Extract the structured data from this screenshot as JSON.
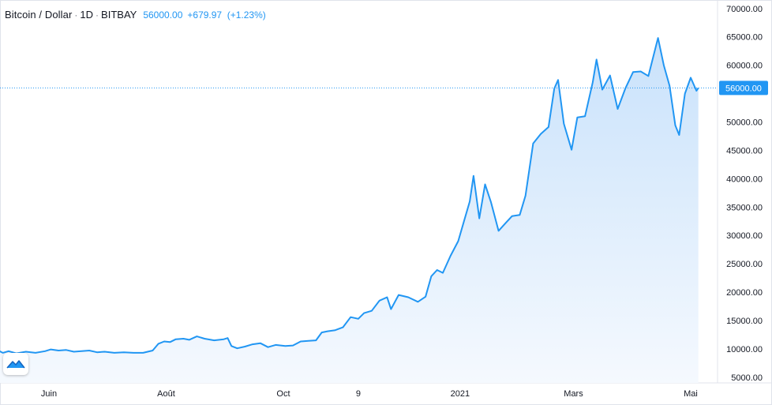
{
  "header": {
    "symbol": "Bitcoin / Dollar",
    "interval": "1D",
    "exchange": "BITBAY",
    "price": "56000.00",
    "change": "+679.97",
    "change_pct": "(+1.23%)"
  },
  "toolbar": {
    "logo_icon": "tradingview-logo-icon"
  },
  "colors": {
    "line": "#2196f3",
    "fill_top": "#c9e2fb",
    "fill_bottom": "#f5f9fe",
    "price_tag_bg": "#2196f3",
    "price_tag_text": "#ffffff",
    "axis_text": "#131722"
  },
  "chart_data": {
    "type": "area",
    "title": "",
    "xlabel": "",
    "ylabel": "",
    "ylim": [
      4000,
      71500
    ],
    "y_ticks": [
      "70000.00",
      "65000.00",
      "60000.00",
      "55000.00",
      "50000.00",
      "45000.00",
      "40000.00",
      "35000.00",
      "30000.00",
      "25000.00",
      "20000.00",
      "15000.00",
      "10000.00",
      "5000.00"
    ],
    "y_tick_values": [
      70000,
      65000,
      60000,
      55000,
      50000,
      45000,
      40000,
      35000,
      30000,
      25000,
      20000,
      15000,
      10000,
      5000
    ],
    "x_ticks": [
      "Juin",
      "Août",
      "Oct",
      "9",
      "2021",
      "Mars",
      "Mai"
    ],
    "x_tick_dates": [
      "2020-06-01",
      "2020-08-01",
      "2020-10-01",
      "2020-11-09",
      "2021-01-01",
      "2021-03-01",
      "2021-05-01"
    ],
    "last_price_label": "56000.00",
    "last_price": 56000,
    "grid": false,
    "series": [
      {
        "points": [
          [
            "2020-05-05",
            9800
          ],
          [
            "2020-05-08",
            9300
          ],
          [
            "2020-05-11",
            9600
          ],
          [
            "2020-05-15",
            9200
          ],
          [
            "2020-05-20",
            9500
          ],
          [
            "2020-05-25",
            9300
          ],
          [
            "2020-05-30",
            9600
          ],
          [
            "2020-06-02",
            9900
          ],
          [
            "2020-06-06",
            9700
          ],
          [
            "2020-06-10",
            9800
          ],
          [
            "2020-06-14",
            9500
          ],
          [
            "2020-06-18",
            9600
          ],
          [
            "2020-06-22",
            9700
          ],
          [
            "2020-06-26",
            9400
          ],
          [
            "2020-06-30",
            9500
          ],
          [
            "2020-07-05",
            9300
          ],
          [
            "2020-07-10",
            9400
          ],
          [
            "2020-07-15",
            9300
          ],
          [
            "2020-07-20",
            9300
          ],
          [
            "2020-07-25",
            9700
          ],
          [
            "2020-07-28",
            10900
          ],
          [
            "2020-07-31",
            11300
          ],
          [
            "2020-08-03",
            11200
          ],
          [
            "2020-08-06",
            11700
          ],
          [
            "2020-08-10",
            11800
          ],
          [
            "2020-08-13",
            11600
          ],
          [
            "2020-08-17",
            12200
          ],
          [
            "2020-08-21",
            11800
          ],
          [
            "2020-08-26",
            11500
          ],
          [
            "2020-08-31",
            11700
          ],
          [
            "2020-09-02",
            11900
          ],
          [
            "2020-09-04",
            10500
          ],
          [
            "2020-09-07",
            10100
          ],
          [
            "2020-09-11",
            10400
          ],
          [
            "2020-09-15",
            10800
          ],
          [
            "2020-09-19",
            11000
          ],
          [
            "2020-09-23",
            10300
          ],
          [
            "2020-09-27",
            10700
          ],
          [
            "2020-10-02",
            10500
          ],
          [
            "2020-10-06",
            10600
          ],
          [
            "2020-10-10",
            11300
          ],
          [
            "2020-10-14",
            11400
          ],
          [
            "2020-10-18",
            11500
          ],
          [
            "2020-10-21",
            12900
          ],
          [
            "2020-10-24",
            13100
          ],
          [
            "2020-10-28",
            13300
          ],
          [
            "2020-11-01",
            13800
          ],
          [
            "2020-11-05",
            15600
          ],
          [
            "2020-11-09",
            15300
          ],
          [
            "2020-11-12",
            16300
          ],
          [
            "2020-11-16",
            16700
          ],
          [
            "2020-11-20",
            18500
          ],
          [
            "2020-11-24",
            19100
          ],
          [
            "2020-11-26",
            17000
          ],
          [
            "2020-11-30",
            19500
          ],
          [
            "2020-12-05",
            19100
          ],
          [
            "2020-12-10",
            18300
          ],
          [
            "2020-12-14",
            19200
          ],
          [
            "2020-12-17",
            22800
          ],
          [
            "2020-12-20",
            23900
          ],
          [
            "2020-12-23",
            23400
          ],
          [
            "2020-12-27",
            26400
          ],
          [
            "2020-12-31",
            29000
          ],
          [
            "2021-01-03",
            32500
          ],
          [
            "2021-01-06",
            36000
          ],
          [
            "2021-01-08",
            40500
          ],
          [
            "2021-01-11",
            33000
          ],
          [
            "2021-01-14",
            39000
          ],
          [
            "2021-01-17",
            35900
          ],
          [
            "2021-01-21",
            30800
          ],
          [
            "2021-01-25",
            32300
          ],
          [
            "2021-01-28",
            33400
          ],
          [
            "2021-02-01",
            33600
          ],
          [
            "2021-02-04",
            37000
          ],
          [
            "2021-02-08",
            46200
          ],
          [
            "2021-02-12",
            47900
          ],
          [
            "2021-02-16",
            49100
          ],
          [
            "2021-02-19",
            55900
          ],
          [
            "2021-02-21",
            57400
          ],
          [
            "2021-02-24",
            49700
          ],
          [
            "2021-02-28",
            45100
          ],
          [
            "2021-03-03",
            50800
          ],
          [
            "2021-03-07",
            51000
          ],
          [
            "2021-03-11",
            57000
          ],
          [
            "2021-03-13",
            61000
          ],
          [
            "2021-03-16",
            55700
          ],
          [
            "2021-03-20",
            58200
          ],
          [
            "2021-03-24",
            52300
          ],
          [
            "2021-03-28",
            55900
          ],
          [
            "2021-04-01",
            58800
          ],
          [
            "2021-04-05",
            58900
          ],
          [
            "2021-04-09",
            58100
          ],
          [
            "2021-04-13",
            63500
          ],
          [
            "2021-04-14",
            64800
          ],
          [
            "2021-04-17",
            60000
          ],
          [
            "2021-04-20",
            56400
          ],
          [
            "2021-04-23",
            49400
          ],
          [
            "2021-04-25",
            47700
          ],
          [
            "2021-04-28",
            55000
          ],
          [
            "2021-05-01",
            57800
          ],
          [
            "2021-05-04",
            55500
          ],
          [
            "2021-05-05",
            56000
          ]
        ]
      }
    ]
  }
}
